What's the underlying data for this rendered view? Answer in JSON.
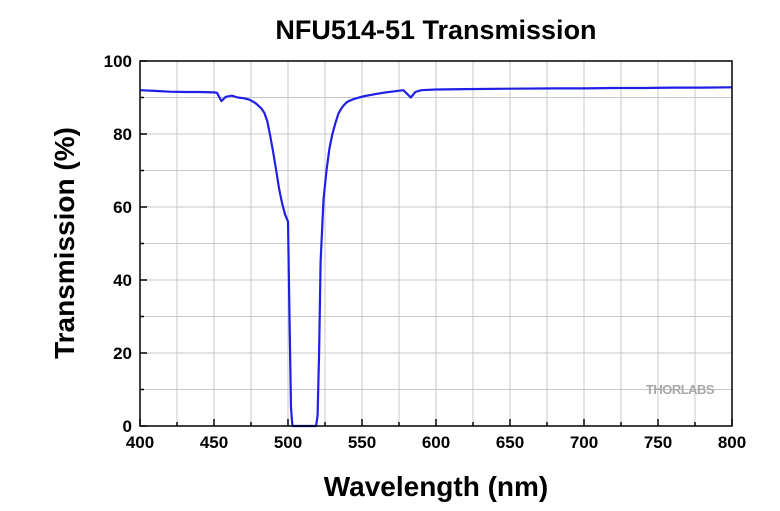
{
  "chart_data": {
    "type": "line",
    "title": "NFU514-51 Transmission",
    "xlabel": "Wavelength (nm)",
    "ylabel": "Transmission (%)",
    "xlim": [
      400,
      800
    ],
    "ylim": [
      0,
      100
    ],
    "xticks": [
      400,
      450,
      500,
      550,
      600,
      650,
      700,
      750,
      800
    ],
    "yticks": [
      0,
      20,
      40,
      60,
      80,
      100
    ],
    "grid": true,
    "watermark": "THORLABS",
    "series": [
      {
        "color": "#1f1fe6",
        "x": [
          400,
          410,
          420,
          430,
          440,
          450,
          452,
          455,
          458,
          462,
          466,
          470,
          474,
          478,
          482,
          484,
          486,
          488,
          490,
          492,
          494,
          496,
          498,
          500,
          501,
          502,
          503,
          504,
          506,
          508,
          510,
          512,
          514,
          516,
          518,
          519,
          520,
          521,
          522,
          524,
          526,
          528,
          530,
          532,
          534,
          536,
          538,
          540,
          544,
          548,
          552,
          556,
          560,
          566,
          572,
          578,
          583,
          586,
          590,
          600,
          620,
          650,
          680,
          700,
          720,
          740,
          760,
          780,
          800
        ],
        "y": [
          92,
          91.8,
          91.6,
          91.5,
          91.5,
          91.4,
          91.3,
          89,
          90.2,
          90.5,
          90,
          89.8,
          89.4,
          88.5,
          87,
          85.8,
          83.5,
          79.5,
          75,
          70,
          65,
          61,
          58,
          56,
          30,
          5,
          0,
          0,
          0,
          0,
          0,
          0,
          0,
          0,
          0,
          0,
          3,
          20,
          45,
          62,
          70,
          76,
          80,
          83,
          85.5,
          87,
          88,
          88.8,
          89.5,
          90,
          90.4,
          90.7,
          91,
          91.4,
          91.7,
          92,
          90,
          91.5,
          92,
          92.2,
          92.3,
          92.4,
          92.5,
          92.5,
          92.6,
          92.6,
          92.7,
          92.7,
          92.8
        ]
      }
    ]
  }
}
